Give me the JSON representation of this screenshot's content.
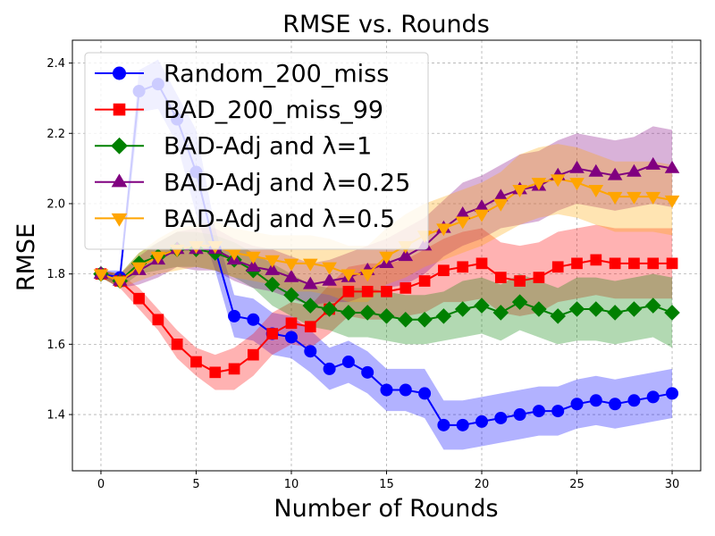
{
  "chart_data": {
    "type": "line",
    "title": "RMSE vs. Rounds",
    "xlabel": "Number of Rounds",
    "ylabel": "RMSE",
    "xlim": [
      -1.5,
      31.5
    ],
    "ylim": [
      1.24,
      2.465
    ],
    "xticks": [
      0,
      5,
      10,
      15,
      20,
      25,
      30
    ],
    "yticks": [
      1.4,
      1.6,
      1.8,
      2.0,
      2.2,
      2.4
    ],
    "grid": true,
    "legend_position": "upper-left",
    "x": [
      0,
      1,
      2,
      3,
      4,
      5,
      6,
      7,
      8,
      9,
      10,
      11,
      12,
      13,
      14,
      15,
      16,
      17,
      18,
      19,
      20,
      21,
      22,
      23,
      24,
      25,
      26,
      27,
      28,
      29,
      30
    ],
    "series": [
      {
        "name": "Random_200_miss",
        "color": "#0000ff",
        "marker": "circle",
        "values": [
          1.8,
          1.79,
          2.32,
          2.34,
          2.24,
          2.09,
          1.87,
          1.68,
          1.67,
          1.63,
          1.62,
          1.58,
          1.53,
          1.55,
          1.52,
          1.47,
          1.47,
          1.46,
          1.37,
          1.37,
          1.38,
          1.39,
          1.4,
          1.41,
          1.41,
          1.43,
          1.44,
          1.43,
          1.44,
          1.45,
          1.46
        ],
        "band": [
          0.01,
          0.02,
          0.06,
          0.07,
          0.07,
          0.12,
          0.06,
          0.06,
          0.06,
          0.06,
          0.06,
          0.06,
          0.06,
          0.06,
          0.06,
          0.06,
          0.06,
          0.07,
          0.07,
          0.07,
          0.07,
          0.07,
          0.07,
          0.07,
          0.07,
          0.07,
          0.07,
          0.07,
          0.07,
          0.07,
          0.07
        ]
      },
      {
        "name": "BAD_200_miss_99",
        "color": "#ff0000",
        "marker": "square",
        "values": [
          1.8,
          1.78,
          1.73,
          1.67,
          1.6,
          1.55,
          1.52,
          1.53,
          1.57,
          1.63,
          1.66,
          1.65,
          1.7,
          1.75,
          1.75,
          1.75,
          1.76,
          1.78,
          1.81,
          1.82,
          1.83,
          1.79,
          1.78,
          1.79,
          1.82,
          1.83,
          1.84,
          1.83,
          1.83,
          1.83,
          1.83
        ],
        "band": [
          0.01,
          0.02,
          0.03,
          0.03,
          0.04,
          0.04,
          0.05,
          0.06,
          0.06,
          0.06,
          0.06,
          0.06,
          0.07,
          0.07,
          0.08,
          0.08,
          0.08,
          0.09,
          0.09,
          0.1,
          0.1,
          0.1,
          0.1,
          0.1,
          0.1,
          0.1,
          0.1,
          0.1,
          0.1,
          0.1,
          0.1
        ]
      },
      {
        "name": "BAD-Adj and λ=1",
        "color": "#008000",
        "marker": "diamond",
        "values": [
          1.8,
          1.78,
          1.83,
          1.85,
          1.87,
          1.87,
          1.86,
          1.84,
          1.81,
          1.77,
          1.74,
          1.71,
          1.7,
          1.69,
          1.69,
          1.68,
          1.67,
          1.67,
          1.68,
          1.7,
          1.71,
          1.69,
          1.72,
          1.7,
          1.68,
          1.7,
          1.7,
          1.69,
          1.7,
          1.71,
          1.69
        ],
        "band": [
          0.01,
          0.02,
          0.03,
          0.04,
          0.05,
          0.05,
          0.05,
          0.05,
          0.05,
          0.06,
          0.06,
          0.06,
          0.06,
          0.07,
          0.07,
          0.07,
          0.07,
          0.07,
          0.07,
          0.08,
          0.08,
          0.08,
          0.08,
          0.08,
          0.08,
          0.09,
          0.09,
          0.09,
          0.09,
          0.09,
          0.1
        ]
      },
      {
        "name": "BAD-Adj and λ=0.25",
        "color": "#800080",
        "marker": "triangle-up",
        "values": [
          1.8,
          1.78,
          1.81,
          1.84,
          1.87,
          1.87,
          1.87,
          1.84,
          1.82,
          1.81,
          1.79,
          1.77,
          1.78,
          1.79,
          1.81,
          1.83,
          1.85,
          1.88,
          1.93,
          1.97,
          1.99,
          2.02,
          2.04,
          2.05,
          2.08,
          2.1,
          2.09,
          2.08,
          2.09,
          2.11,
          2.1
        ],
        "band": [
          0.01,
          0.02,
          0.04,
          0.05,
          0.05,
          0.06,
          0.06,
          0.06,
          0.06,
          0.06,
          0.06,
          0.06,
          0.06,
          0.07,
          0.07,
          0.07,
          0.08,
          0.08,
          0.08,
          0.09,
          0.09,
          0.09,
          0.1,
          0.1,
          0.1,
          0.1,
          0.1,
          0.1,
          0.1,
          0.11,
          0.11
        ]
      },
      {
        "name": "BAD-Adj and λ=0.5",
        "color": "#ffa500",
        "marker": "triangle-down",
        "values": [
          1.8,
          1.78,
          1.82,
          1.85,
          1.87,
          1.88,
          1.88,
          1.86,
          1.85,
          1.84,
          1.83,
          1.83,
          1.82,
          1.8,
          1.8,
          1.85,
          1.88,
          1.91,
          1.93,
          1.95,
          1.97,
          2.0,
          2.04,
          2.06,
          2.07,
          2.06,
          2.04,
          2.02,
          2.02,
          2.02,
          2.01
        ],
        "band": [
          0.01,
          0.02,
          0.04,
          0.05,
          0.06,
          0.06,
          0.07,
          0.07,
          0.07,
          0.07,
          0.08,
          0.08,
          0.08,
          0.08,
          0.08,
          0.08,
          0.09,
          0.09,
          0.09,
          0.09,
          0.09,
          0.09,
          0.1,
          0.1,
          0.1,
          0.1,
          0.1,
          0.1,
          0.1,
          0.1,
          0.1
        ]
      }
    ]
  }
}
